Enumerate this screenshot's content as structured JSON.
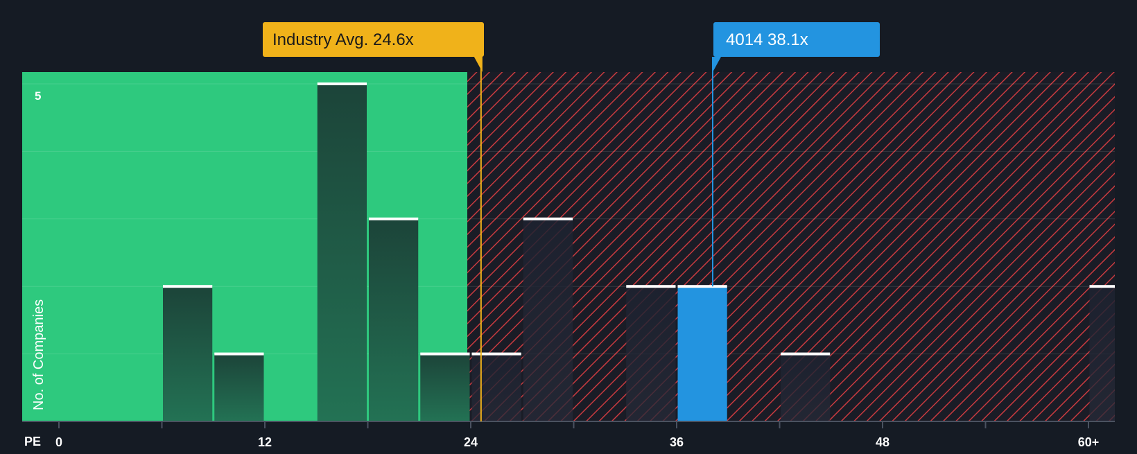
{
  "chart_data": {
    "type": "bar",
    "title": "",
    "xlabel": "PE",
    "ylabel": "No. of Companies",
    "x_ticks": [
      "0",
      "12",
      "24",
      "36",
      "48",
      "60+"
    ],
    "y_ticks": [
      "5"
    ],
    "ylim": [
      0,
      5
    ],
    "xlim": [
      0,
      60
    ],
    "bin_width": 3,
    "bars": [
      {
        "x_start": 6,
        "x_end": 9,
        "value": 2,
        "zone": "below"
      },
      {
        "x_start": 9,
        "x_end": 12,
        "value": 1,
        "zone": "below"
      },
      {
        "x_start": 15,
        "x_end": 18,
        "value": 5,
        "zone": "below"
      },
      {
        "x_start": 18,
        "x_end": 21,
        "value": 3,
        "zone": "below"
      },
      {
        "x_start": 21,
        "x_end": 24,
        "value": 1,
        "zone": "below"
      },
      {
        "x_start": 24,
        "x_end": 27,
        "value": 1,
        "zone": "above"
      },
      {
        "x_start": 27,
        "x_end": 30,
        "value": 3,
        "zone": "above"
      },
      {
        "x_start": 33,
        "x_end": 36,
        "value": 2,
        "zone": "above"
      },
      {
        "x_start": 36,
        "x_end": 39,
        "value": 2,
        "zone": "highlight"
      },
      {
        "x_start": 42,
        "x_end": 45,
        "value": 1,
        "zone": "above"
      },
      {
        "x_start": 60,
        "x_end": 63,
        "value": 2,
        "zone": "above"
      }
    ],
    "shaded_threshold": 23.8,
    "industry_avg": {
      "label": "Industry Avg. 24.6x",
      "value": 24.6
    },
    "company": {
      "label": "4014 38.1x",
      "value": 38.1
    },
    "colors": {
      "background": "#151b24",
      "green_zone": "#2ec97e",
      "red_hatch": "#c83a3f",
      "bar_dark": "#1f4d3f",
      "highlight": "#2394e0",
      "industry": "#f0b21a",
      "axis": "#4a5260"
    }
  }
}
